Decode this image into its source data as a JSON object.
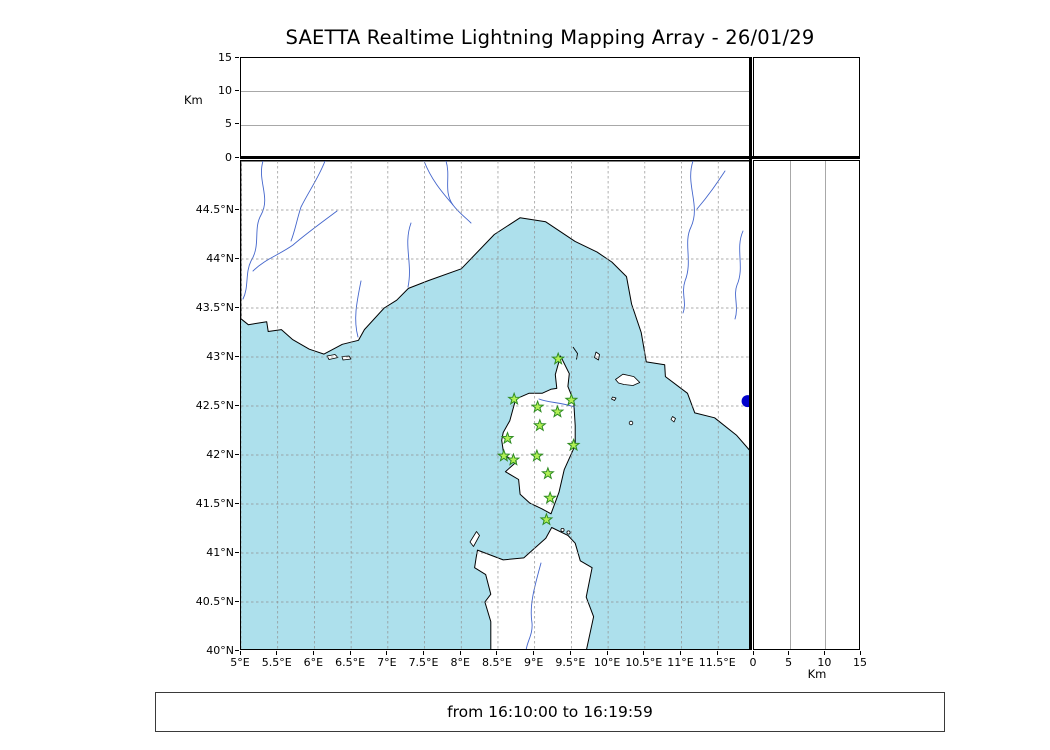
{
  "title": "SAETTA Realtime Lightning Mapping Array - 26/01/29",
  "footer": {
    "time_range": "from 16:10:00 to 16:19:59"
  },
  "axes": {
    "altitude_left": {
      "unit_label": "Km",
      "ticks": [
        0,
        5,
        10,
        15
      ],
      "max_km": 15
    },
    "altitude_bottom": {
      "unit_label": "Km",
      "ticks": [
        0,
        5,
        10,
        15
      ],
      "max_km": 15
    },
    "longitude": {
      "tick_values": [
        5,
        5.5,
        6,
        6.5,
        7,
        7.5,
        8,
        8.5,
        9,
        9.5,
        10,
        10.5,
        11,
        11.5
      ],
      "tick_labels": [
        "5°E",
        "5.5°E",
        "6°E",
        "6.5°E",
        "7°E",
        "7.5°E",
        "8°E",
        "8.5°E",
        "9°E",
        "9.5°E",
        "10°E",
        "10.5°E",
        "11°E",
        "11.5°E"
      ]
    },
    "latitude": {
      "tick_values": [
        40,
        40.5,
        41,
        41.5,
        42,
        42.5,
        43,
        43.5,
        44,
        44.5
      ],
      "tick_labels": [
        "40°N",
        "40.5°N",
        "41°N",
        "41.5°N",
        "42°N",
        "42.5°N",
        "43°N",
        "43.5°N",
        "44°N",
        "44.5°N"
      ]
    }
  },
  "chart_data": {
    "type": "scatter",
    "title": "SAETTA Realtime Lightning Mapping Array - 26/01/29",
    "time_window": "from 16:10:00 to 16:19:59",
    "map_extent": {
      "lon_min": 5.0,
      "lon_max": 11.96,
      "lat_min": 40.0,
      "lat_max": 45.0
    },
    "altitude_range_km": [
      0,
      15
    ],
    "grid": {
      "on": true,
      "spacing_deg": 0.5,
      "style": "dashed"
    },
    "legend": "green stars = SAETTA receiving stations (Corsica); blue dot = marker at map edge; side panels = altitude projections (empty: no sources in window)",
    "stations": [
      {
        "lon": 9.32,
        "lat": 42.98
      },
      {
        "lon": 8.72,
        "lat": 42.57
      },
      {
        "lon": 9.04,
        "lat": 42.49
      },
      {
        "lon": 9.31,
        "lat": 42.44
      },
      {
        "lon": 9.5,
        "lat": 42.56
      },
      {
        "lon": 9.07,
        "lat": 42.3
      },
      {
        "lon": 8.63,
        "lat": 42.17
      },
      {
        "lon": 9.53,
        "lat": 42.1
      },
      {
        "lon": 8.58,
        "lat": 41.99
      },
      {
        "lon": 8.71,
        "lat": 41.95
      },
      {
        "lon": 9.03,
        "lat": 41.99
      },
      {
        "lon": 9.18,
        "lat": 41.81
      },
      {
        "lon": 9.21,
        "lat": 41.56
      },
      {
        "lon": 9.16,
        "lat": 41.34
      }
    ],
    "event_marker": {
      "lon": 11.9,
      "lat": 42.55
    },
    "colors": {
      "sea": "#ade0ec",
      "land": "#ffffff",
      "coast": "#000000",
      "river": "#4466cc",
      "grid": "#909090",
      "station_fill": "#b2f055",
      "station_edge": "#2e8b22",
      "event": "#0000cc"
    }
  }
}
